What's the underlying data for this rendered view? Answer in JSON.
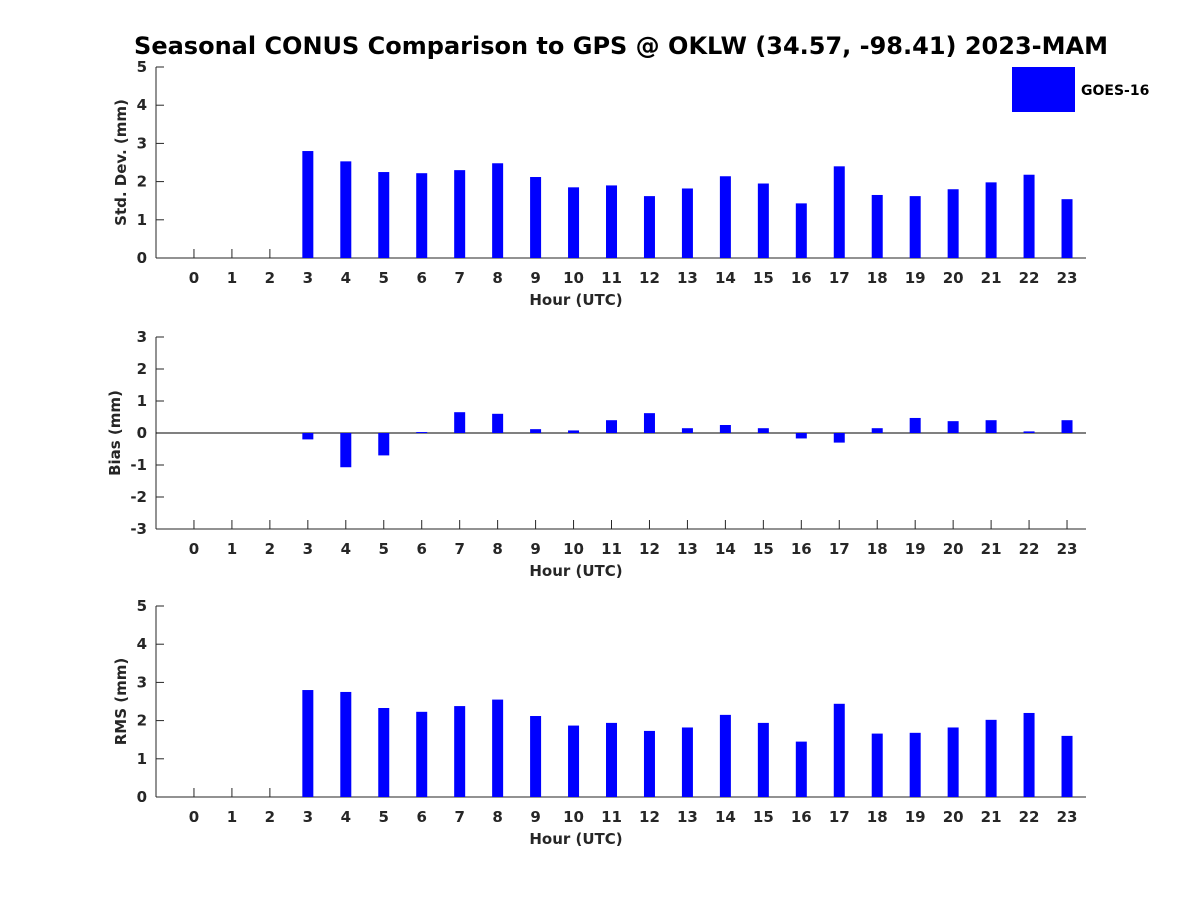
{
  "title": "Seasonal CONUS Comparison to GPS @ OKLW (34.57, -98.41) 2023-MAM",
  "legend": {
    "label": "GOES-16",
    "color": "#0000ff",
    "position": "top-right"
  },
  "chart_data": [
    {
      "type": "bar",
      "ylabel": "Std. Dev. (mm)",
      "xlabel": "Hour (UTC)",
      "x": [
        0,
        1,
        2,
        3,
        4,
        5,
        6,
        7,
        8,
        9,
        10,
        11,
        12,
        13,
        14,
        15,
        16,
        17,
        18,
        19,
        20,
        21,
        22,
        23
      ],
      "values": [
        null,
        null,
        null,
        2.8,
        2.53,
        2.25,
        2.22,
        2.3,
        2.48,
        2.12,
        1.85,
        1.9,
        1.62,
        1.82,
        2.14,
        1.95,
        1.43,
        2.4,
        1.65,
        1.62,
        1.8,
        1.98,
        2.18,
        1.54
      ],
      "ylim": [
        0,
        5
      ],
      "yticks": [
        0,
        1,
        2,
        3,
        4,
        5
      ],
      "grid": false
    },
    {
      "type": "bar",
      "ylabel": "Bias (mm)",
      "xlabel": "Hour (UTC)",
      "x": [
        0,
        1,
        2,
        3,
        4,
        5,
        6,
        7,
        8,
        9,
        10,
        11,
        12,
        13,
        14,
        15,
        16,
        17,
        18,
        19,
        20,
        21,
        22,
        23
      ],
      "values": [
        null,
        null,
        null,
        -0.2,
        -1.07,
        -0.7,
        0.03,
        0.65,
        0.6,
        0.12,
        0.08,
        0.4,
        0.62,
        0.15,
        0.25,
        0.15,
        -0.17,
        -0.3,
        0.15,
        0.47,
        0.37,
        0.4,
        0.05,
        0.4
      ],
      "ylim": [
        -3,
        3
      ],
      "yticks": [
        -3,
        -2,
        -1,
        0,
        1,
        2,
        3
      ],
      "grid": false
    },
    {
      "type": "bar",
      "ylabel": "RMS (mm)",
      "xlabel": "Hour (UTC)",
      "x": [
        0,
        1,
        2,
        3,
        4,
        5,
        6,
        7,
        8,
        9,
        10,
        11,
        12,
        13,
        14,
        15,
        16,
        17,
        18,
        19,
        20,
        21,
        22,
        23
      ],
      "values": [
        null,
        null,
        null,
        2.8,
        2.75,
        2.33,
        2.23,
        2.38,
        2.55,
        2.12,
        1.87,
        1.94,
        1.73,
        1.82,
        2.15,
        1.94,
        1.45,
        2.44,
        1.66,
        1.68,
        1.82,
        2.02,
        2.2,
        1.6
      ],
      "ylim": [
        0,
        5
      ],
      "yticks": [
        0,
        1,
        2,
        3,
        4,
        5
      ],
      "grid": false
    }
  ]
}
